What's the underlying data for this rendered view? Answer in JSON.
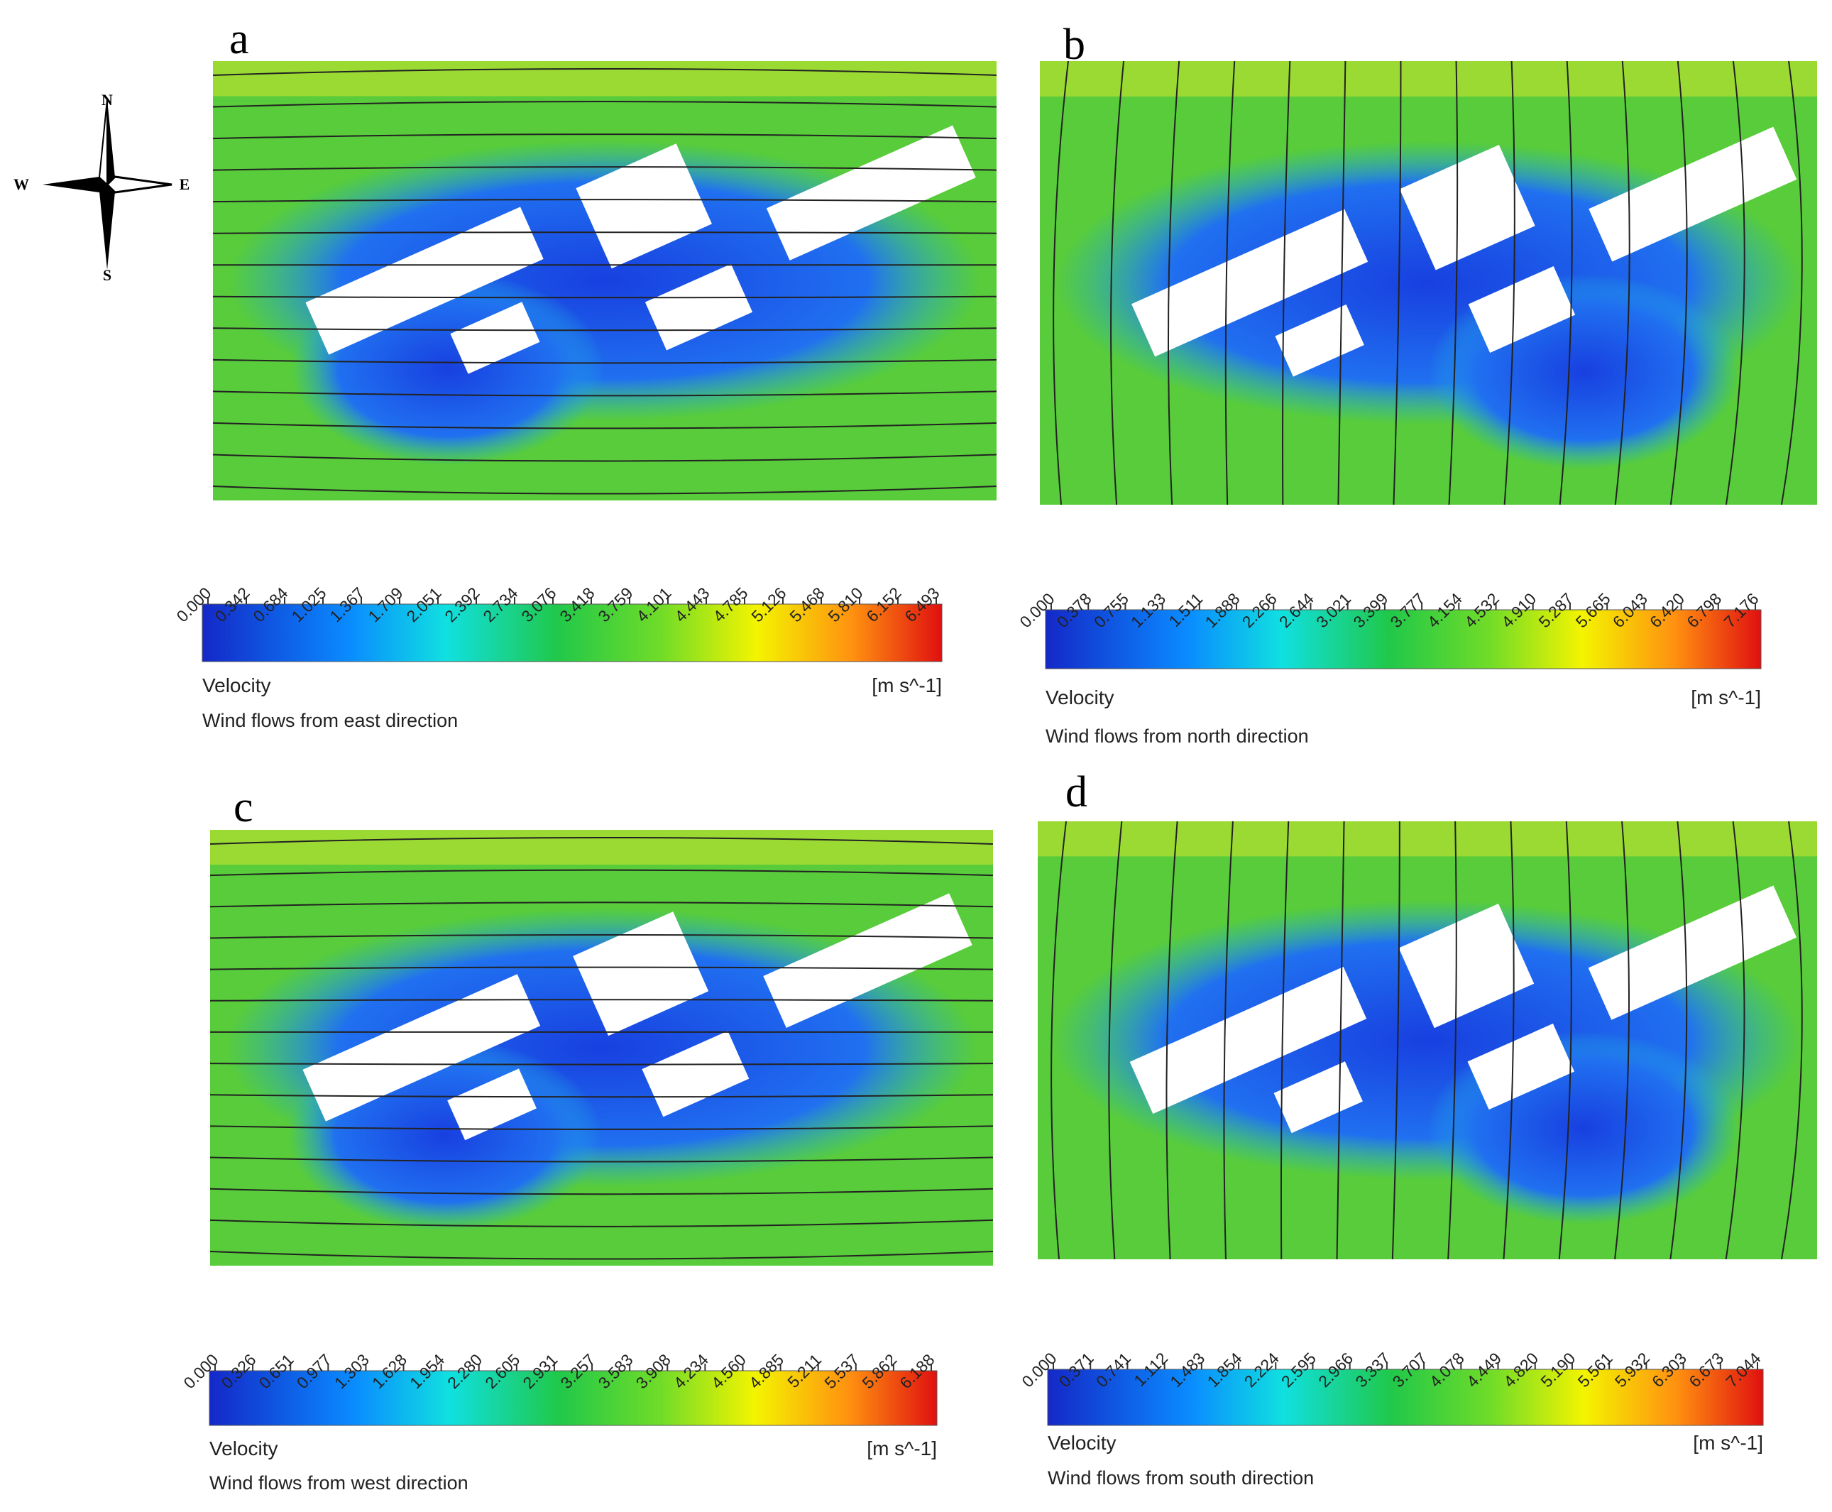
{
  "compass": {
    "north": "N",
    "south": "S",
    "east": "E",
    "west": "W"
  },
  "panels": [
    {
      "letter": "a",
      "ticks": [
        "0.000",
        "0.342",
        "0.684",
        "1.025",
        "1.367",
        "1.709",
        "2.051",
        "2.392",
        "2.734",
        "3.076",
        "3.418",
        "3.759",
        "4.101",
        "4.443",
        "4.785",
        "5.126",
        "5.468",
        "5.810",
        "6.152",
        "6.493"
      ],
      "quantity": "Velocity",
      "unit": "[m s^-1]",
      "caption": "Wind flows from east direction"
    },
    {
      "letter": "b",
      "ticks": [
        "0.000",
        "0.378",
        "0.755",
        "1.133",
        "1.511",
        "1.888",
        "2.266",
        "2.644",
        "3.021",
        "3.399",
        "3.777",
        "4.154",
        "4.532",
        "4.910",
        "5.287",
        "5.665",
        "6.043",
        "6.420",
        "6.798",
        "7.176"
      ],
      "quantity": "Velocity",
      "unit": "[m s^-1]",
      "caption": "Wind flows from north direction"
    },
    {
      "letter": "c",
      "ticks": [
        "0.000",
        "0.326",
        "0.651",
        "0.977",
        "1.303",
        "1.628",
        "1.954",
        "2.280",
        "2.605",
        "2.931",
        "3.257",
        "3.583",
        "3.908",
        "4.234",
        "4.560",
        "4.885",
        "5.211",
        "5.537",
        "5.862",
        "6.188"
      ],
      "quantity": "Velocity",
      "unit": "[m s^-1]",
      "caption": "Wind flows from west direction"
    },
    {
      "letter": "d",
      "ticks": [
        "0.000",
        "0.371",
        "0.741",
        "1.112",
        "1.483",
        "1.854",
        "2.224",
        "2.595",
        "2.966",
        "3.337",
        "3.707",
        "4.078",
        "4.449",
        "4.820",
        "5.190",
        "5.561",
        "5.932",
        "6.303",
        "6.673",
        "7.044"
      ],
      "quantity": "Velocity",
      "unit": "[m s^-1]",
      "caption": "Wind flows from south direction"
    }
  ]
}
